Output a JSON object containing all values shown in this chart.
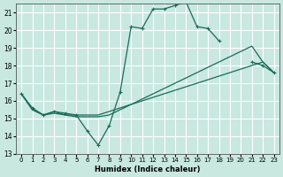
{
  "xlabel": "Humidex (Indice chaleur)",
  "ylabel": "",
  "xlim": [
    -0.5,
    23.5
  ],
  "ylim": [
    13,
    21.5
  ],
  "yticks": [
    13,
    14,
    15,
    16,
    17,
    18,
    19,
    20,
    21
  ],
  "xticks": [
    0,
    1,
    2,
    3,
    4,
    5,
    6,
    7,
    8,
    9,
    10,
    11,
    12,
    13,
    14,
    15,
    16,
    17,
    18,
    19,
    20,
    21,
    22,
    23
  ],
  "bg_color": "#c8e8e0",
  "grid_color": "#ffffff",
  "line_color": "#1a6b5a",
  "line_color2": "#1a6b5a",
  "lines": [
    {
      "x": [
        0,
        1,
        2,
        3,
        4,
        5,
        6,
        7,
        8,
        9,
        10,
        11,
        12,
        13,
        14,
        15,
        16,
        17,
        18,
        19,
        20,
        21,
        22,
        23
      ],
      "y": [
        16.4,
        15.6,
        15.2,
        15.4,
        15.3,
        15.2,
        14.3,
        13.5,
        14.6,
        16.5,
        20.2,
        20.1,
        21.2,
        21.2,
        21.4,
        21.6,
        20.2,
        20.1,
        19.4,
        null,
        null,
        18.2,
        18.0,
        17.6
      ]
    },
    {
      "x": [
        0,
        1,
        2,
        3,
        4,
        5,
        6,
        7,
        8,
        9,
        10,
        11,
        12,
        13,
        14,
        15,
        16,
        17,
        18,
        19,
        20,
        21,
        22,
        23
      ],
      "y": [
        16.4,
        15.5,
        15.2,
        15.4,
        15.2,
        15.2,
        15.2,
        15.2,
        15.4,
        15.6,
        15.8,
        16.0,
        16.2,
        16.4,
        16.6,
        16.8,
        17.0,
        17.2,
        17.4,
        17.6,
        17.8,
        18.0,
        18.2,
        17.6
      ]
    },
    {
      "x": [
        0,
        1,
        2,
        3,
        4,
        5,
        6,
        7,
        8,
        9,
        10,
        11,
        12,
        13,
        14,
        15,
        16,
        17,
        18,
        19,
        20,
        21,
        22,
        23
      ],
      "y": [
        16.4,
        15.5,
        15.2,
        15.3,
        15.2,
        15.1,
        15.1,
        15.1,
        15.2,
        15.5,
        15.8,
        16.1,
        16.4,
        16.7,
        17.0,
        17.3,
        17.6,
        17.9,
        18.2,
        18.5,
        18.8,
        19.1,
        18.2,
        17.6
      ]
    },
    {
      "x": [
        0,
        9,
        10,
        11,
        12,
        13,
        14,
        15,
        16,
        17,
        18,
        21,
        22,
        23
      ],
      "y": [
        16.4,
        17.3,
        20.2,
        20.2,
        21.1,
        21.2,
        21.4,
        21.6,
        20.2,
        20.1,
        19.4,
        18.2,
        18.0,
        17.6
      ]
    }
  ]
}
